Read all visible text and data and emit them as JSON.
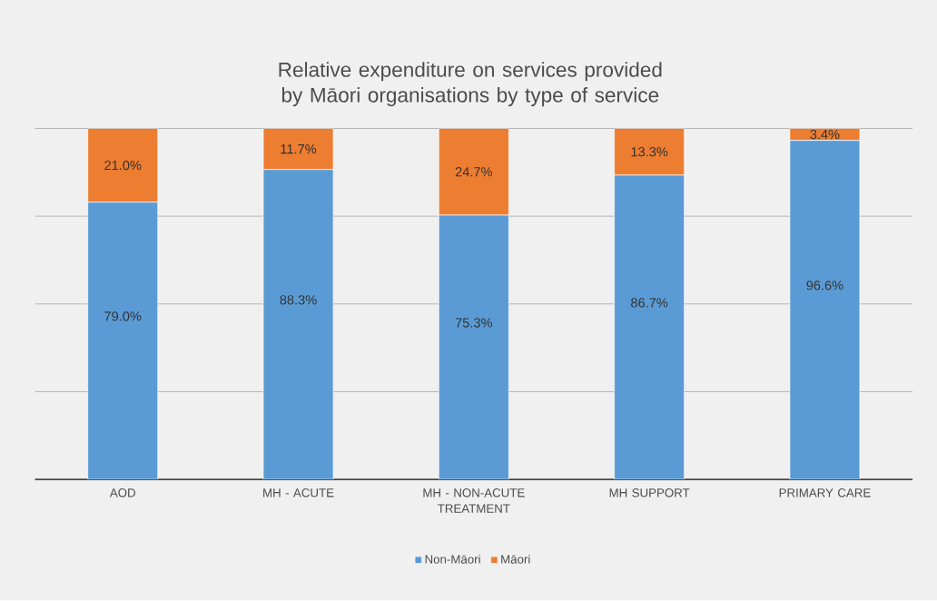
{
  "chart_data": {
    "type": "bar",
    "stacked": true,
    "title": "Relative expenditure on services provided by Māori organisations by type of service",
    "categories": [
      "AOD",
      "MH - ACUTE",
      "MH - NON-ACUTE TREATMENT",
      "MH SUPPORT",
      "PRIMARY CARE"
    ],
    "series": [
      {
        "name": "Non-Māori",
        "color": "#5b9bd5",
        "values": [
          79.0,
          88.3,
          75.3,
          86.7,
          96.6
        ],
        "value_labels": [
          "79.0%",
          "88.3%",
          "75.3%",
          "86.7%",
          "96.6%"
        ]
      },
      {
        "name": "Māori",
        "color": "#ed7d31",
        "values": [
          21.0,
          11.7,
          24.7,
          13.3,
          3.4
        ],
        "value_labels": [
          "21.0%",
          "11.7%",
          "24.7%",
          "13.3%",
          "3.4%"
        ]
      }
    ],
    "ylim": [
      0,
      100
    ],
    "yticks": [
      {
        "value": 0,
        "label": null
      },
      {
        "value": 25,
        "label": null
      },
      {
        "value": 50,
        "label": null
      },
      {
        "value": 75,
        "label": null
      },
      {
        "value": 100,
        "label": null
      }
    ],
    "grid": "y",
    "legend": "bottom",
    "tick_labels": "x"
  }
}
